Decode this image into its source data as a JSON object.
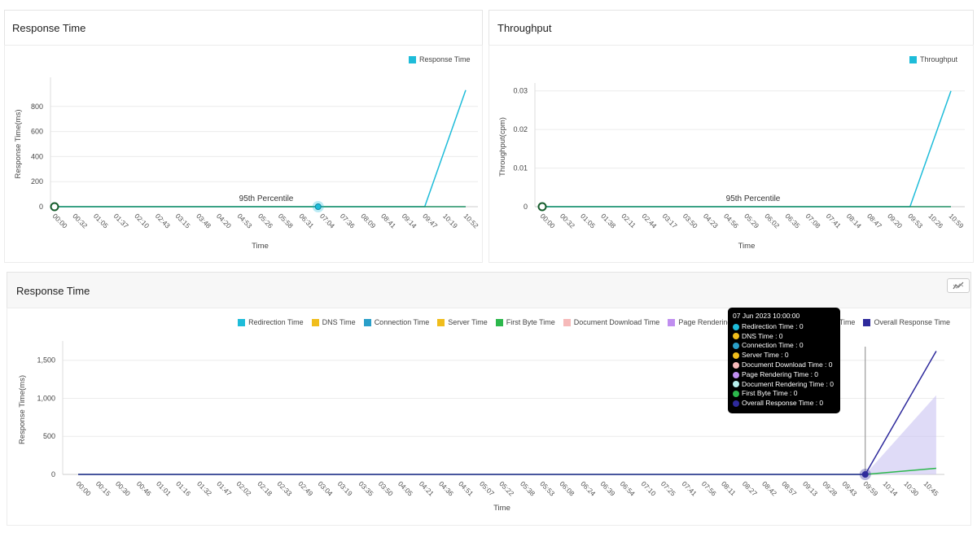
{
  "panels": {
    "top_left": {
      "title": "Response Time"
    },
    "top_right": {
      "title": "Throughput"
    },
    "bottom": {
      "title": "Response Time",
      "action_icon": "chart-type-icon"
    }
  },
  "chart_data": [
    {
      "type": "line",
      "title": "",
      "xlabel": "Time",
      "ylabel": "Response Time(ms)",
      "x_ticks": [
        "00:00",
        "00:32",
        "01:05",
        "01:37",
        "02:10",
        "02:43",
        "03:15",
        "03:48",
        "04:20",
        "04:53",
        "05:26",
        "05:58",
        "06:31",
        "07:04",
        "07:36",
        "08:09",
        "08:41",
        "09:14",
        "09:47",
        "10:19",
        "10:52"
      ],
      "y_ticks": [
        "0",
        "200",
        "400",
        "600",
        "800"
      ],
      "y_tick_values": [
        0,
        200,
        400,
        600,
        800
      ],
      "ylim": [
        0,
        1000
      ],
      "grid": true,
      "legend": [
        "Response Time"
      ],
      "legend_placement": "top-right",
      "annotation": "95th Percentile",
      "highlight_time": "06:58",
      "series": [
        {
          "name": "Response Time",
          "color": "#1ebcd9",
          "points": [
            [
              "00:00",
              0
            ],
            [
              "09:47",
              0
            ],
            [
              "10:52",
              930
            ]
          ]
        },
        {
          "name": "95th Percentile",
          "color": "#1f8f63",
          "points": [
            [
              "00:00",
              0
            ],
            [
              "10:52",
              0
            ]
          ]
        }
      ]
    },
    {
      "type": "line",
      "title": "",
      "xlabel": "Time",
      "ylabel": "Throughput(cpm)",
      "x_ticks": [
        "00:00",
        "00:32",
        "01:05",
        "01:38",
        "02:11",
        "02:44",
        "03:17",
        "03:50",
        "04:23",
        "04:56",
        "05:29",
        "06:02",
        "06:35",
        "07:08",
        "07:41",
        "08:14",
        "08:47",
        "09:20",
        "09:53",
        "10:26",
        "10:59"
      ],
      "y_ticks": [
        "0",
        "0.01",
        "0.02",
        "0.03"
      ],
      "y_tick_values": [
        0,
        0.01,
        0.02,
        0.03
      ],
      "ylim": [
        0,
        0.031
      ],
      "grid": true,
      "legend": [
        "Throughput"
      ],
      "legend_placement": "top-right",
      "annotation": "95th Percentile",
      "series": [
        {
          "name": "Throughput",
          "color": "#1ebcd9",
          "points": [
            [
              "00:00",
              0
            ],
            [
              "09:53",
              0
            ],
            [
              "10:59",
              0.03
            ]
          ]
        },
        {
          "name": "95th Percentile",
          "color": "#1f8f63",
          "points": [
            [
              "00:00",
              0
            ],
            [
              "10:59",
              0
            ]
          ]
        }
      ]
    },
    {
      "type": "line",
      "title": "",
      "xlabel": "Time",
      "ylabel": "Response Time(ms)",
      "x_ticks": [
        "00:00",
        "00:15",
        "00:30",
        "00:46",
        "01:01",
        "01:16",
        "01:32",
        "01:47",
        "02:02",
        "02:18",
        "02:33",
        "02:49",
        "03:04",
        "03:19",
        "03:35",
        "03:50",
        "04:05",
        "04:21",
        "04:36",
        "04:51",
        "05:07",
        "05:22",
        "05:38",
        "05:53",
        "06:08",
        "06:24",
        "06:39",
        "06:54",
        "07:10",
        "07:25",
        "07:41",
        "07:56",
        "08:11",
        "08:27",
        "08:42",
        "08:57",
        "09:13",
        "09:28",
        "09:43",
        "09:59",
        "10:14",
        "10:30",
        "10:45"
      ],
      "y_ticks": [
        "0",
        "500",
        "1,000",
        "1,500"
      ],
      "y_tick_values": [
        0,
        500,
        1000,
        1500
      ],
      "ylim": [
        0,
        1700
      ],
      "grid": true,
      "legend_placement": "top-right",
      "legend": [
        {
          "name": "Redirection Time",
          "color": "#1ebcd9"
        },
        {
          "name": "DNS Time",
          "color": "#f0bd1c"
        },
        {
          "name": "Connection Time",
          "color": "#2a9fc9"
        },
        {
          "name": "Server Time",
          "color": "#f0bd1c"
        },
        {
          "name": "First Byte Time",
          "color": "#2cb84c"
        },
        {
          "name": "Document Download Time",
          "color": "#f6b9b9"
        },
        {
          "name": "Page Rendering Time",
          "color": "#c08ef0"
        },
        {
          "name": "Document Rendering Time",
          "color": "#b8f0ee"
        },
        {
          "name": "Overall Response Time",
          "color": "#2e2a9c"
        }
      ],
      "highlight_time": "09:59",
      "series": [
        {
          "name": "Page Rendering Time",
          "color": "#c9c3f2",
          "area": true,
          "points": [
            [
              "00:00",
              0
            ],
            [
              "09:59",
              0
            ],
            [
              "10:53",
              1040
            ]
          ]
        },
        {
          "name": "First Byte Time",
          "color": "#2cb84c",
          "points": [
            [
              "00:00",
              0
            ],
            [
              "09:59",
              0
            ],
            [
              "10:53",
              80
            ]
          ]
        },
        {
          "name": "Overall Response Time",
          "color": "#2e2a9c",
          "points": [
            [
              "00:00",
              0
            ],
            [
              "09:59",
              0
            ],
            [
              "10:53",
              1620
            ]
          ]
        }
      ],
      "tooltip": {
        "title": "07 Jun 2023 10:00:00",
        "rows": [
          {
            "label": "Redirection Time : 0",
            "color": "#1ebcd9"
          },
          {
            "label": "DNS Time : 0",
            "color": "#f0bd1c"
          },
          {
            "label": "Connection Time : 0",
            "color": "#2a9fc9"
          },
          {
            "label": "Server Time : 0",
            "color": "#f0bd1c"
          },
          {
            "label": "Document Download Time : 0",
            "color": "#f6b9b9"
          },
          {
            "label": "Page Rendering Time : 0",
            "color": "#c08ef0"
          },
          {
            "label": "Document Rendering Time : 0",
            "color": "#b8f0ee"
          },
          {
            "label": "First Byte Time : 0",
            "color": "#2cb84c"
          },
          {
            "label": "Overall Response Time : 0",
            "color": "#2e2a9c"
          }
        ]
      }
    }
  ]
}
